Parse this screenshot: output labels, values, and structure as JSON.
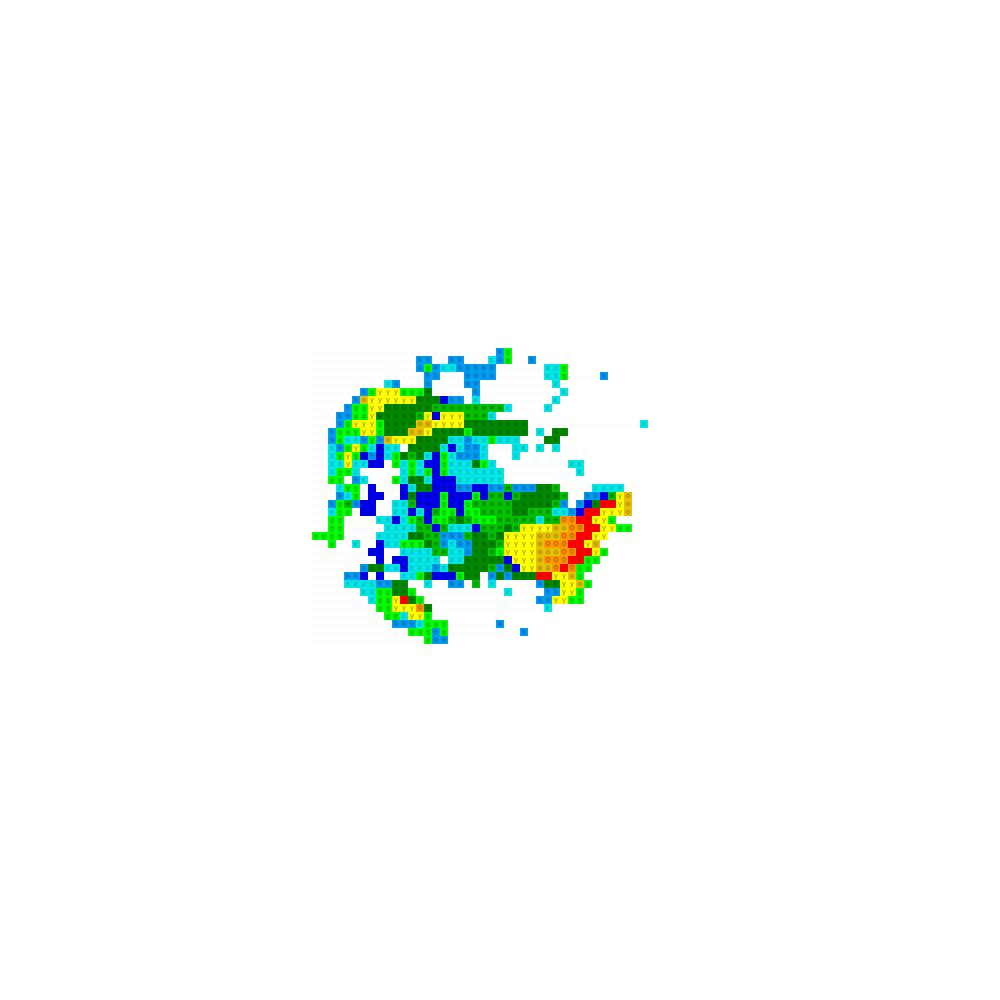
{
  "radar": {
    "palette": {
      "b": "#009cf4",
      "c": "#00e6e6",
      "g": "#00ff00",
      "m": "#00c000",
      "G": "#008800",
      "B": "#0000f0",
      "y": "#ffff00",
      "o": "#e6c000",
      "O": "#ff9400",
      "r": "#ff0000"
    },
    "rows": [
      ".......................bg",
      ".............bb..bb...cbg..b",
      ".............bgbccbbbbb......ccg",
      "..............bb...bbbb......ccg....b",
      ".........cb...b....bb.........c",
      "......bgyyygggG.....b..........c",
      ".....boyyyyyyGGGBbb.c.........c",
      "....bggyyGGGGGGmmmmmmmmmc....c",
      "...bbggyGGGGGmyByyymmmc",
      "...bgyyygGGGGooyyyyGGGGGGGG..............c",
      "..bgggyygGGGooyGGGGgGGGGGGG.c.GG",
      "..bgccbgboyyyGGGGccbccgccc...GG",
      "..cbgygcBcc.GGGGcBcbbc...cc.c.c",
      "..cgygBbBcgGmGcBgcbbbc...c",
      "..ccyccBB.gcgcBBgcccGgc.........cc",
      "..cggc.....cgcgBgccccccc.........c",
      "..gg.bc...gcGGcBBBcccccc",
      "...cgg.B...BcGGBBBbbBBbbmbbbGGm....cccc",
      "...bcg.BB..BGBBBgBBBgBmmBmGGGGGm..bbBmyo",
      "..bgmbBB..ccmBBBgBBgmmmmmGGGGGmb.bBGrryo",
      "..cgg.BB..ccBcBmggBggmmmmGGmmmccbBrryyyo",
      "..gg....ccBcgmBggmGmgggmmmmmcmmOOrryyg",
      "..gg.....ccccmmBmcccBmmmGmyyyyooOOrryygg",
      "gggg....ccccGGmmbbbmGGmGyyyyoooOOrryy",
      "..g..c..BccgggGmbcbbGGGmyyyyoOOOrryo",
      ".......BB..ccccmmccbGGmgyyyyoooOOrryg",
      "........B.BBcccc.ccGGGGGByyyoOOOrrgg",
      "......bGGccBcccbcGGGGGmbGByyooOrOgg",
      "....bbB.B..ccgGBBBgGG.bGbGGGrryyog",
      "....ccccbbGG..c..bb.m.c.....bGGyyog",
      "......ccggGGg...........c....bbyyg",
      ".......cggyrGg..............bbyygg",
      "........ggyyyOG..............c",
      ".........ggcyyg",
      "..........bbbcggg......b",
      "............gggbg.........b",
      "..............gbb"
    ]
  }
}
